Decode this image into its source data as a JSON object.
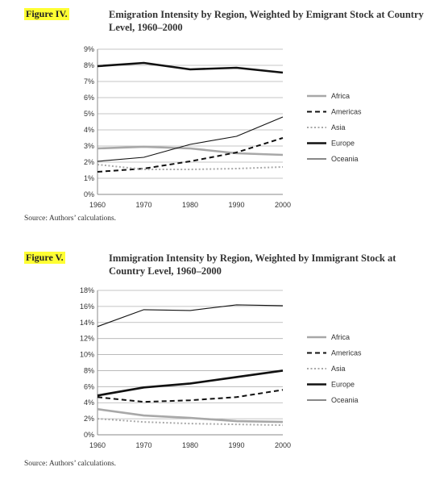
{
  "figures": [
    {
      "label": "Figure IV.",
      "title": "Emigration Intensity by Region, Weighted by Emigrant Stock at Country Level, 1960–2000",
      "source": "Source: Authors’ calculations."
    },
    {
      "label": "Figure V.",
      "title": "Immigration Intensity by Region, Weighted by Immigrant Stock at Country Level, 1960–2000",
      "source": "Source: Authors’ calculations."
    }
  ],
  "chart_data": [
    {
      "type": "line",
      "title": "Emigration Intensity by Region, Weighted by Emigrant Stock at Country Level, 1960–2000",
      "x": [
        1960,
        1970,
        1980,
        1990,
        2000
      ],
      "ylim": [
        0,
        9
      ],
      "yticks": [
        0,
        1,
        2,
        3,
        4,
        5,
        6,
        7,
        8,
        9
      ],
      "ytick_labels": [
        "0%",
        "1%",
        "2%",
        "3%",
        "4%",
        "5%",
        "6%",
        "7%",
        "8%",
        "9%"
      ],
      "xtick_labels": [
        "1960",
        "1970",
        "1980",
        "1990",
        "2000"
      ],
      "grid": true,
      "legend_position": "right",
      "series": [
        {
          "name": "Africa",
          "values": [
            2.85,
            2.95,
            2.85,
            2.55,
            2.45
          ],
          "color": "#a8a8a8",
          "style": "solid-thick"
        },
        {
          "name": "Americas",
          "values": [
            1.4,
            1.6,
            2.05,
            2.6,
            3.5
          ],
          "color": "#111111",
          "style": "dashed"
        },
        {
          "name": "Asia",
          "values": [
            1.85,
            1.55,
            1.55,
            1.6,
            1.7
          ],
          "color": "#a8a8a8",
          "style": "dotted"
        },
        {
          "name": "Europe",
          "values": [
            7.95,
            8.15,
            7.75,
            7.85,
            7.55
          ],
          "color": "#111111",
          "style": "solid-thick"
        },
        {
          "name": "Oceania",
          "values": [
            2.05,
            2.3,
            3.1,
            3.6,
            4.8
          ],
          "color": "#111111",
          "style": "solid-thin"
        }
      ]
    },
    {
      "type": "line",
      "title": "Immigration Intensity by Region, Weighted by Immigrant Stock at Country Level, 1960–2000",
      "x": [
        1960,
        1970,
        1980,
        1990,
        2000
      ],
      "ylim": [
        0,
        18
      ],
      "yticks": [
        0,
        2,
        4,
        6,
        8,
        10,
        12,
        14,
        16,
        18
      ],
      "ytick_labels": [
        "0%",
        "2%",
        "4%",
        "6%",
        "8%",
        "10%",
        "12%",
        "14%",
        "16%",
        "18%"
      ],
      "xtick_labels": [
        "1960",
        "1970",
        "1980",
        "1990",
        "2000"
      ],
      "grid": true,
      "legend_position": "right",
      "series": [
        {
          "name": "Africa",
          "values": [
            3.2,
            2.4,
            2.1,
            1.7,
            1.6
          ],
          "color": "#a8a8a8",
          "style": "solid-thick"
        },
        {
          "name": "Americas",
          "values": [
            4.7,
            4.1,
            4.3,
            4.7,
            5.6
          ],
          "color": "#111111",
          "style": "dashed"
        },
        {
          "name": "Asia",
          "values": [
            2.0,
            1.6,
            1.4,
            1.3,
            1.2
          ],
          "color": "#a8a8a8",
          "style": "dotted"
        },
        {
          "name": "Europe",
          "values": [
            4.9,
            5.9,
            6.4,
            7.2,
            8.0
          ],
          "color": "#111111",
          "style": "solid-thick"
        },
        {
          "name": "Oceania",
          "values": [
            13.5,
            15.6,
            15.5,
            16.2,
            16.1
          ],
          "color": "#111111",
          "style": "solid-thin"
        }
      ]
    }
  ]
}
